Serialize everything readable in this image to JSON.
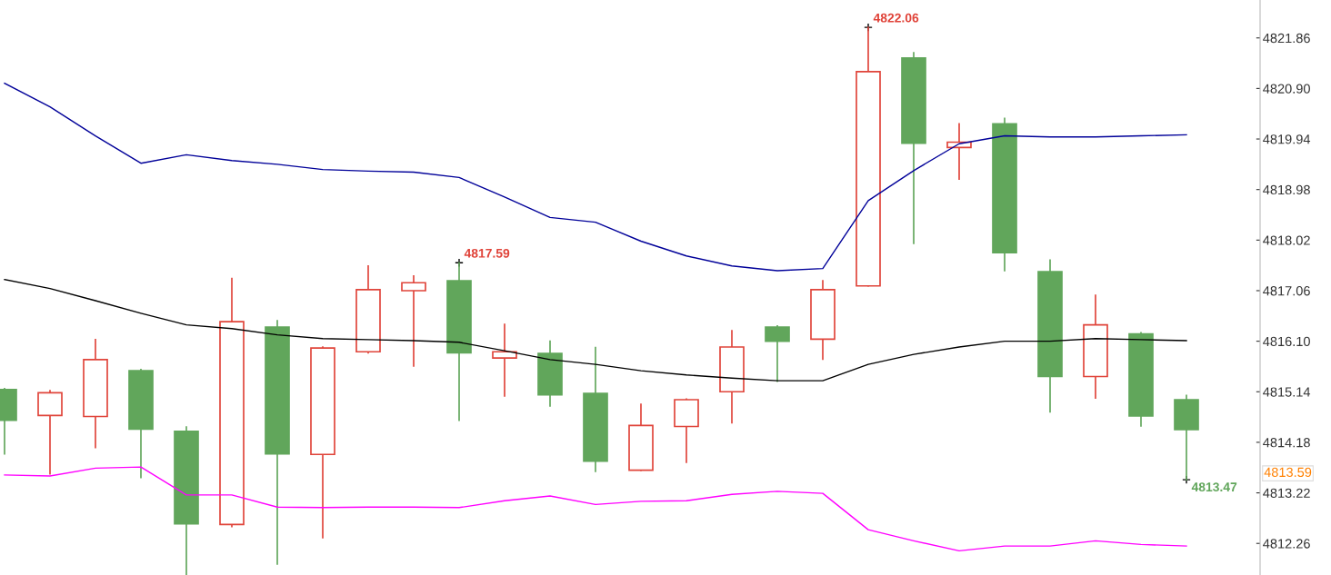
{
  "chart_data": {
    "type": "candlestick",
    "categories": [
      null,
      null,
      null,
      null,
      null,
      null,
      null,
      null,
      null,
      null,
      null,
      null,
      null,
      null,
      null,
      null,
      null,
      null,
      null,
      null,
      null,
      null,
      null,
      null,
      null,
      null,
      null
    ],
    "ohlc": [
      [
        4815.18,
        4815.2,
        4813.96,
        4814.6
      ],
      [
        4814.69,
        4815.16,
        4813.58,
        4815.12
      ],
      [
        4814.67,
        4816.13,
        4814.08,
        4815.75
      ],
      [
        4815.54,
        4815.56,
        4813.51,
        4814.43
      ],
      [
        4814.39,
        4814.47,
        4811.67,
        4812.63
      ],
      [
        4812.62,
        4817.29,
        4812.58,
        4816.47
      ],
      [
        4816.37,
        4816.49,
        4811.87,
        4813.96
      ],
      [
        4813.95,
        4815.99,
        4812.37,
        4815.97
      ],
      [
        4815.9,
        4817.53,
        4815.88,
        4817.08
      ],
      [
        4817.06,
        4817.34,
        4815.63,
        4817.21
      ],
      [
        4817.25,
        4817.59,
        4814.6,
        4815.88
      ],
      [
        4815.78,
        4816.42,
        4815.06,
        4815.9
      ],
      [
        4815.87,
        4816.1,
        4814.87,
        4815.08
      ],
      [
        4815.11,
        4815.98,
        4813.63,
        4813.82
      ],
      [
        4813.65,
        4814.9,
        4813.65,
        4814.5
      ],
      [
        4814.48,
        4815.0,
        4813.8,
        4814.99
      ],
      [
        4815.14,
        4816.3,
        4814.55,
        4815.99
      ],
      [
        4816.37,
        4816.39,
        4815.34,
        4816.1
      ],
      [
        4816.14,
        4817.25,
        4815.76,
        4817.08
      ],
      [
        4817.15,
        4822.06,
        4817.15,
        4821.22
      ],
      [
        4821.48,
        4821.58,
        4817.96,
        4819.86
      ],
      [
        4819.78,
        4820.23,
        4819.18,
        4819.88
      ],
      [
        4820.23,
        4820.33,
        4817.44,
        4817.78
      ],
      [
        4817.42,
        4817.64,
        4814.76,
        4815.43
      ],
      [
        4815.43,
        4816.97,
        4815.02,
        4816.41
      ],
      [
        4816.24,
        4816.26,
        4814.49,
        4814.68
      ],
      [
        4814.99,
        4815.07,
        4813.47,
        4814.42
      ]
    ],
    "colors": [
      "#61a65b",
      "#e0443a",
      "#e0443a",
      "#61a65b",
      "#61a65b",
      "#e0443a",
      "#61a65b",
      "#e0443a",
      "#e0443a",
      "#e0443a",
      "#61a65b",
      "#e0443a",
      "#61a65b",
      "#61a65b",
      "#e0443a",
      "#e0443a",
      "#e0443a",
      "#61a65b",
      "#e0443a",
      "#e0443a",
      "#61a65b",
      "#e0443a",
      "#61a65b",
      "#61a65b",
      "#e0443a",
      "#61a65b",
      "#61a65b"
    ],
    "series": [
      {
        "type": "line",
        "color": "#000099",
        "values": [
          4821.0,
          4820.55,
          4820.0,
          4819.48,
          4819.64,
          4819.53,
          4819.46,
          4819.36,
          4819.33,
          4819.31,
          4819.21,
          4818.84,
          4818.45,
          4818.36,
          4818.0,
          4817.72,
          4817.53,
          4817.44,
          4817.48,
          4818.77,
          4819.34,
          4819.85,
          4820.0,
          4819.98,
          4819.98,
          4820.0,
          4820.02
        ]
      },
      {
        "type": "line",
        "color": "#000000",
        "values": [
          4817.27,
          4817.1,
          4816.87,
          4816.63,
          4816.41,
          4816.34,
          4816.22,
          4816.15,
          4816.13,
          4816.11,
          4816.08,
          4815.92,
          4815.75,
          4815.66,
          4815.54,
          4815.46,
          4815.4,
          4815.35,
          4815.35,
          4815.66,
          4815.85,
          4815.99,
          4816.1,
          4816.1,
          4816.15,
          4816.13,
          4816.11
        ]
      },
      {
        "type": "line",
        "color": "#ff00ff",
        "values": [
          4813.56,
          4813.54,
          4813.69,
          4813.71,
          4813.18,
          4813.18,
          4812.95,
          4812.94,
          4812.95,
          4812.95,
          4812.94,
          4813.07,
          4813.16,
          4813.0,
          4813.06,
          4813.07,
          4813.19,
          4813.25,
          4813.21,
          4812.52,
          4812.31,
          4812.12,
          4812.21,
          4812.21,
          4812.31,
          4812.24,
          4812.21
        ]
      }
    ],
    "ylim": [
      4811.66,
      4822.58
    ],
    "yticks": [
      {
        "value": 4812.26,
        "label": "4812.26"
      },
      {
        "value": 4813.22,
        "label": "4813.22"
      },
      {
        "value": 4814.18,
        "label": "4814.18"
      },
      {
        "value": 4815.14,
        "label": "4815.14"
      },
      {
        "value": 4816.1,
        "label": "4816.10"
      },
      {
        "value": 4817.06,
        "label": "4817.06"
      },
      {
        "value": 4818.02,
        "label": "4818.02"
      },
      {
        "value": 4818.98,
        "label": "4818.98"
      },
      {
        "value": 4819.94,
        "label": "4819.94"
      },
      {
        "value": 4820.9,
        "label": "4820.90"
      },
      {
        "value": 4821.86,
        "label": "4821.86"
      }
    ],
    "grid": false,
    "annotations": [
      "4822.06",
      "4817.59",
      "4813.47",
      "4813.59"
    ]
  }
}
